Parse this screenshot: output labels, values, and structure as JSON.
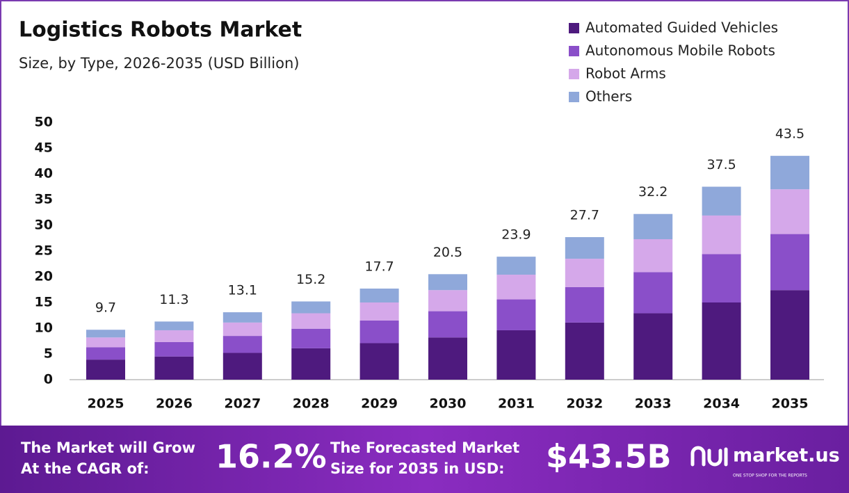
{
  "chart_data": {
    "type": "stacked_bar",
    "title": "Logistics Robots Market",
    "subtitle": "Size, by Type, 2026-2035 (USD Billion)",
    "categories": [
      "2025",
      "2026",
      "2027",
      "2028",
      "2029",
      "2030",
      "2031",
      "2032",
      "2033",
      "2034",
      "2035"
    ],
    "series": [
      {
        "name": "Automated Guided Vehicles",
        "color": "#4e1a7e",
        "values": [
          3.9,
          4.5,
          5.2,
          6.1,
          7.1,
          8.2,
          9.6,
          11.1,
          12.9,
          15.0,
          17.4
        ]
      },
      {
        "name": "Autonomous Mobile Robots",
        "color": "#8a4fc9",
        "values": [
          2.4,
          2.8,
          3.3,
          3.8,
          4.4,
          5.1,
          6.0,
          6.9,
          8.0,
          9.4,
          10.9
        ]
      },
      {
        "name": "Robot Arms",
        "color": "#d5a8ea",
        "values": [
          1.9,
          2.3,
          2.6,
          3.0,
          3.5,
          4.1,
          4.8,
          5.5,
          6.4,
          7.5,
          8.7
        ]
      },
      {
        "name": "Others",
        "color": "#8fa8da",
        "values": [
          1.5,
          1.7,
          2.0,
          2.3,
          2.7,
          3.1,
          3.5,
          4.2,
          4.9,
          5.6,
          6.5
        ]
      }
    ],
    "totals": [
      9.7,
      11.3,
      13.1,
      15.2,
      17.7,
      20.5,
      23.9,
      27.7,
      32.2,
      37.5,
      43.5
    ],
    "ylim": [
      0,
      50
    ],
    "yticks": [
      0,
      5,
      10,
      15,
      20,
      25,
      30,
      35,
      40,
      45,
      50
    ],
    "grid": false,
    "legend": "top-right"
  },
  "footer": {
    "cagr_text": [
      "The Market will Grow",
      "At the CAGR of:"
    ],
    "cagr_value": "16.2%",
    "forecast_text": [
      "The Forecasted Market",
      "Size for 2035 in USD:"
    ],
    "forecast_value": "$43.5B",
    "brand": "market.us",
    "tagline": "ONE STOP SHOP FOR THE REPORTS"
  }
}
